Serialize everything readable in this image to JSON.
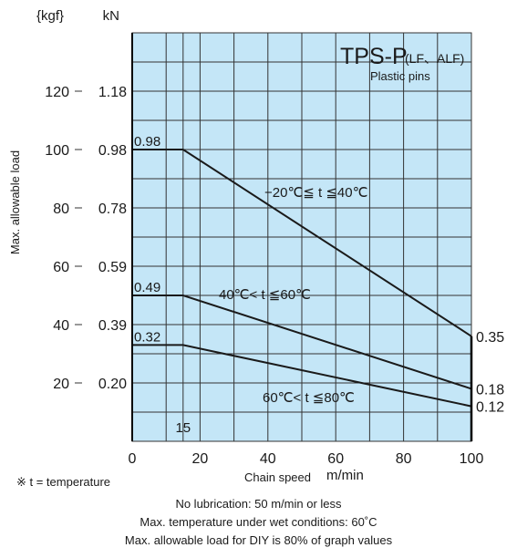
{
  "chart_data": {
    "type": "line",
    "title": "TPS-P",
    "title_suffix": "(LF、ALF)",
    "subtitle": "Plastic pins",
    "xlabel": "Chain speed",
    "xunit": "m/min",
    "ylabel": "Max. allowable load",
    "y_unit_kgf": "{kgf}",
    "y_unit_kn": "kN",
    "xlim": [
      0,
      100
    ],
    "ylim": [
      0,
      140
    ],
    "x_ticks": [
      "0",
      "20",
      "40",
      "60",
      "80",
      "100"
    ],
    "x_tick_values": [
      0,
      20,
      40,
      60,
      80,
      100
    ],
    "y_ticks_kgf": [
      "20",
      "40",
      "60",
      "80",
      "100",
      "120"
    ],
    "y_ticks_kn": [
      "0.20",
      "0.39",
      "0.59",
      "0.78",
      "0.98",
      "1.18"
    ],
    "y_tick_values": [
      20,
      40,
      60,
      80,
      100,
      120
    ],
    "x_marker_label": "15",
    "x_marker_value": 15,
    "grid": true,
    "background_color": "#c4e6f7",
    "line_color": "#1a1a1a",
    "series": [
      {
        "name": "−20℃≦ t ≦40℃",
        "x": [
          0,
          15,
          100
        ],
        "y_kgf": [
          100,
          100,
          36
        ],
        "start_label": "0.98",
        "end_label": "0.35"
      },
      {
        "name": "40℃< t ≦60℃",
        "x": [
          0,
          15,
          100
        ],
        "y_kgf": [
          50,
          50,
          18
        ],
        "start_label": "0.49",
        "end_label": "0.18"
      },
      {
        "name": "60℃< t ≦80℃",
        "x": [
          0,
          15,
          100
        ],
        "y_kgf": [
          33,
          33,
          12
        ],
        "start_label": "0.32",
        "end_label": "0.12"
      }
    ]
  },
  "footnote": "※ t = temperature",
  "notes": [
    "No lubrication: 50 m/min or less",
    "Max. temperature under wet conditions: 60˚C",
    "Max. allowable load for DIY is 80% of graph values"
  ]
}
